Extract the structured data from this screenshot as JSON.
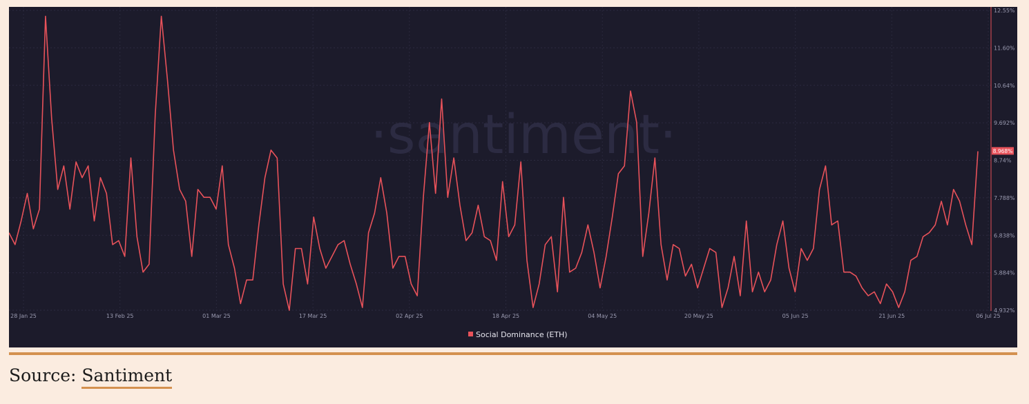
{
  "watermark": "·santiment·",
  "legend": {
    "label": "Social Dominance (ETH)"
  },
  "source": {
    "prefix": "Source: ",
    "link_text": "Santiment"
  },
  "colors": {
    "line": "#e8525a",
    "background": "#1c1b2b",
    "page": "#fbece0",
    "accent": "#d4914f"
  },
  "chart_data": {
    "type": "line",
    "x_tick_labels": [
      "28 Jan 25",
      "13 Feb 25",
      "01 Mar 25",
      "17 Mar 25",
      "02 Apr 25",
      "18 Apr 25",
      "04 May 25",
      "20 May 25",
      "05 Jun 25",
      "21 Jun 25",
      "06 Jul 25"
    ],
    "y_tick_labels": [
      "12.55%",
      "11.60%",
      "10.64%",
      "9.692%",
      "8.74%",
      "7.788%",
      "6.838%",
      "5.884%",
      "4.932%"
    ],
    "ylim": [
      4.932,
      12.55
    ],
    "last_value_label": "8.968%",
    "grid": true,
    "legend_position": "bottom-center",
    "series": [
      {
        "name": "Social Dominance (ETH)",
        "values": [
          6.9,
          6.6,
          7.2,
          7.9,
          7.0,
          7.5,
          12.4,
          9.8,
          8.0,
          8.6,
          7.5,
          8.7,
          8.3,
          8.6,
          7.2,
          8.3,
          7.9,
          6.6,
          6.7,
          6.3,
          8.8,
          6.8,
          5.9,
          6.1,
          9.9,
          12.4,
          10.8,
          9.0,
          8.0,
          7.7,
          6.3,
          8.0,
          7.8,
          7.8,
          7.5,
          8.6,
          6.6,
          6.0,
          5.1,
          5.7,
          5.7,
          7.1,
          8.3,
          9.0,
          8.8,
          5.6,
          4.93,
          6.5,
          6.5,
          5.6,
          7.3,
          6.5,
          6.0,
          6.3,
          6.6,
          6.7,
          6.1,
          5.6,
          5.0,
          6.9,
          7.4,
          8.3,
          7.4,
          6.0,
          6.3,
          6.3,
          5.6,
          5.3,
          7.8,
          9.7,
          7.9,
          10.3,
          7.8,
          8.8,
          7.6,
          6.7,
          6.9,
          7.6,
          6.8,
          6.7,
          6.2,
          8.2,
          6.8,
          7.1,
          8.7,
          6.2,
          5.0,
          5.6,
          6.6,
          6.8,
          5.4,
          7.8,
          5.9,
          6.0,
          6.4,
          7.1,
          6.4,
          5.5,
          6.3,
          7.3,
          8.4,
          8.6,
          10.5,
          9.7,
          6.3,
          7.4,
          8.8,
          6.6,
          5.7,
          6.6,
          6.5,
          5.8,
          6.1,
          5.5,
          6.0,
          6.5,
          6.4,
          5.0,
          5.5,
          6.3,
          5.3,
          7.2,
          5.4,
          5.9,
          5.4,
          5.7,
          6.6,
          7.2,
          6.0,
          5.4,
          6.5,
          6.2,
          6.5,
          8.0,
          8.6,
          7.1,
          7.2,
          5.9,
          5.9,
          5.8,
          5.5,
          5.3,
          5.4,
          5.1,
          5.6,
          5.4,
          5.0,
          5.4,
          6.2,
          6.3,
          6.8,
          6.9,
          7.1,
          7.7,
          7.1,
          8.0,
          7.7,
          7.1,
          6.6,
          8.97
        ]
      }
    ]
  }
}
